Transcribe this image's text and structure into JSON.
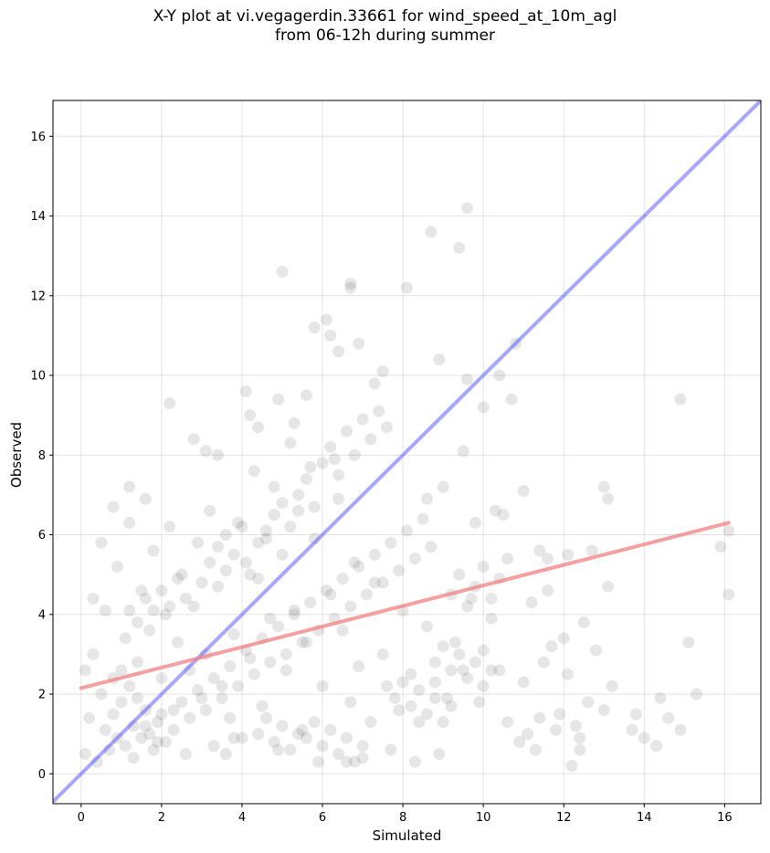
{
  "chart_data": {
    "type": "scatter",
    "title_line1": "X-Y plot at vi.vegagerdin.33661 for wind_speed_at_10m_agl",
    "title_line2": "from 06-12h during summer",
    "xlabel": "Simulated",
    "ylabel": "Observed",
    "xlim": [
      -0.7,
      16.9
    ],
    "ylim": [
      -0.75,
      16.9
    ],
    "xticks": [
      0,
      2,
      4,
      6,
      8,
      10,
      12,
      14,
      16
    ],
    "yticks": [
      0,
      2,
      4,
      6,
      8,
      10,
      12,
      14,
      16
    ],
    "grid": true,
    "point_color": "#404040",
    "identity_line": {
      "color": "#3b3bff",
      "from": [
        -0.7,
        -0.7
      ],
      "to": [
        16.9,
        16.9
      ]
    },
    "fit_line": {
      "color": "#f08080",
      "from": [
        0.0,
        2.15
      ],
      "to": [
        16.1,
        6.3
      ]
    },
    "points": [
      [
        0.1,
        2.6
      ],
      [
        0.3,
        4.4
      ],
      [
        0.5,
        5.8
      ],
      [
        0.8,
        6.7
      ],
      [
        1.2,
        7.2
      ],
      [
        1.6,
        6.9
      ],
      [
        2.2,
        9.3
      ],
      [
        2.8,
        8.4
      ],
      [
        3.1,
        8.1
      ],
      [
        3.4,
        8.0
      ],
      [
        4.1,
        9.6
      ],
      [
        4.2,
        9.0
      ],
      [
        4.4,
        8.7
      ],
      [
        4.9,
        9.4
      ],
      [
        5.0,
        12.6
      ],
      [
        5.3,
        8.8
      ],
      [
        5.6,
        9.5
      ],
      [
        5.8,
        11.2
      ],
      [
        6.1,
        11.4
      ],
      [
        6.2,
        11.0
      ],
      [
        6.4,
        10.6
      ],
      [
        6.7,
        12.3
      ],
      [
        6.7,
        12.2
      ],
      [
        6.9,
        10.8
      ],
      [
        7.3,
        9.8
      ],
      [
        7.5,
        10.1
      ],
      [
        8.1,
        12.2
      ],
      [
        8.7,
        13.6
      ],
      [
        8.9,
        10.4
      ],
      [
        9.4,
        13.2
      ],
      [
        9.6,
        14.2
      ],
      [
        9.6,
        9.9
      ],
      [
        10.0,
        9.2
      ],
      [
        10.4,
        10.0
      ],
      [
        10.8,
        10.8
      ],
      [
        10.7,
        9.4
      ],
      [
        11.0,
        7.1
      ],
      [
        10.5,
        6.5
      ],
      [
        10.3,
        6.6
      ],
      [
        9.8,
        6.3
      ],
      [
        9.5,
        8.1
      ],
      [
        9.0,
        7.2
      ],
      [
        8.6,
        6.9
      ],
      [
        13.0,
        7.2
      ],
      [
        13.1,
        6.9
      ],
      [
        14.9,
        9.4
      ],
      [
        16.1,
        6.1
      ],
      [
        15.9,
        5.7
      ],
      [
        16.1,
        4.5
      ],
      [
        15.1,
        3.3
      ],
      [
        15.3,
        2.0
      ],
      [
        14.9,
        1.1
      ],
      [
        14.6,
        1.4
      ],
      [
        14.4,
        1.9
      ],
      [
        14.3,
        0.7
      ],
      [
        14.0,
        0.9
      ],
      [
        13.8,
        1.5
      ],
      [
        13.7,
        1.1
      ],
      [
        13.2,
        2.2
      ],
      [
        13.0,
        1.6
      ],
      [
        12.8,
        3.1
      ],
      [
        12.6,
        1.8
      ],
      [
        12.5,
        3.8
      ],
      [
        12.4,
        0.9
      ],
      [
        12.2,
        0.2
      ],
      [
        12.1,
        2.5
      ],
      [
        12.0,
        3.4
      ],
      [
        11.9,
        1.5
      ],
      [
        11.8,
        1.1
      ],
      [
        11.7,
        3.2
      ],
      [
        11.5,
        2.8
      ],
      [
        11.4,
        1.4
      ],
      [
        11.3,
        0.6
      ],
      [
        11.2,
        4.3
      ],
      [
        11.1,
        1.0
      ],
      [
        11.0,
        2.3
      ],
      [
        12.7,
        5.6
      ],
      [
        12.1,
        5.5
      ],
      [
        11.6,
        5.4
      ],
      [
        11.4,
        5.6
      ],
      [
        11.6,
        4.6
      ],
      [
        13.1,
        4.7
      ],
      [
        12.3,
        1.2
      ],
      [
        12.4,
        0.6
      ],
      [
        10.9,
        0.8
      ],
      [
        10.6,
        1.3
      ],
      [
        10.4,
        2.6
      ],
      [
        10.2,
        3.9
      ],
      [
        10.0,
        3.1
      ],
      [
        9.9,
        1.8
      ],
      [
        9.7,
        4.4
      ],
      [
        9.5,
        2.6
      ],
      [
        9.3,
        3.3
      ],
      [
        9.1,
        1.9
      ],
      [
        8.9,
        0.5
      ],
      [
        8.8,
        2.3
      ],
      [
        8.6,
        3.7
      ],
      [
        8.4,
        1.3
      ],
      [
        8.3,
        0.3
      ],
      [
        8.2,
        2.5
      ],
      [
        8.0,
        4.1
      ],
      [
        7.9,
        1.6
      ],
      [
        7.7,
        0.6
      ],
      [
        7.6,
        2.2
      ],
      [
        7.5,
        3.0
      ],
      [
        7.3,
        4.8
      ],
      [
        7.2,
        1.3
      ],
      [
        7.0,
        0.4
      ],
      [
        6.9,
        2.7
      ],
      [
        6.8,
        5.3
      ],
      [
        6.7,
        1.8
      ],
      [
        6.6,
        0.3
      ],
      [
        6.5,
        3.6
      ],
      [
        6.4,
        6.9
      ],
      [
        6.3,
        7.9
      ],
      [
        6.2,
        4.5
      ],
      [
        6.0,
        2.2
      ],
      [
        5.9,
        0.3
      ],
      [
        5.8,
        5.9
      ],
      [
        5.7,
        7.7
      ],
      [
        5.6,
        3.3
      ],
      [
        5.5,
        1.1
      ],
      [
        5.4,
        6.6
      ],
      [
        5.3,
        4.1
      ],
      [
        5.2,
        8.3
      ],
      [
        5.1,
        2.6
      ],
      [
        5.0,
        5.5
      ],
      [
        4.9,
        0.6
      ],
      [
        4.8,
        7.2
      ],
      [
        4.7,
        3.9
      ],
      [
        4.6,
        6.1
      ],
      [
        4.5,
        1.7
      ],
      [
        4.4,
        4.9
      ],
      [
        4.3,
        7.6
      ],
      [
        4.2,
        2.9
      ],
      [
        4.1,
        5.3
      ],
      [
        4.0,
        0.9
      ],
      [
        3.9,
        6.3
      ],
      [
        3.8,
        3.5
      ],
      [
        3.7,
        1.4
      ],
      [
        3.6,
        5.1
      ],
      [
        3.5,
        2.2
      ],
      [
        3.4,
        4.7
      ],
      [
        3.3,
        0.7
      ],
      [
        3.2,
        6.6
      ],
      [
        3.1,
        3.0
      ],
      [
        3.0,
        1.9
      ],
      [
        2.9,
        5.8
      ],
      [
        2.8,
        4.2
      ],
      [
        2.7,
        2.6
      ],
      [
        2.6,
        0.5
      ],
      [
        2.5,
        5.0
      ],
      [
        2.4,
        3.3
      ],
      [
        2.3,
        1.6
      ],
      [
        2.2,
        6.2
      ],
      [
        2.1,
        4.0
      ],
      [
        2.0,
        2.4
      ],
      [
        1.9,
        0.8
      ],
      [
        1.8,
        5.6
      ],
      [
        1.7,
        3.6
      ],
      [
        1.6,
        1.2
      ],
      [
        1.5,
        4.6
      ],
      [
        1.4,
        2.8
      ],
      [
        1.3,
        0.4
      ],
      [
        1.2,
        6.3
      ],
      [
        1.1,
        3.4
      ],
      [
        1.0,
        1.8
      ],
      [
        0.9,
        5.2
      ],
      [
        0.8,
        2.4
      ],
      [
        0.7,
        0.6
      ],
      [
        0.6,
        4.1
      ],
      [
        0.5,
        2.0
      ],
      [
        0.4,
        0.3
      ],
      [
        0.3,
        3.0
      ],
      [
        0.2,
        1.4
      ],
      [
        0.1,
        0.5
      ],
      [
        0.9,
        0.9
      ],
      [
        1.1,
        0.7
      ],
      [
        1.3,
        1.2
      ],
      [
        1.5,
        0.9
      ],
      [
        1.7,
        1.0
      ],
      [
        1.9,
        1.3
      ],
      [
        2.1,
        0.8
      ],
      [
        2.3,
        1.1
      ],
      [
        1.8,
        0.6
      ],
      [
        2.0,
        1.5
      ],
      [
        1.6,
        1.6
      ],
      [
        1.4,
        1.9
      ],
      [
        1.2,
        2.2
      ],
      [
        1.0,
        2.6
      ],
      [
        0.8,
        1.5
      ],
      [
        0.6,
        1.1
      ],
      [
        2.5,
        1.8
      ],
      [
        2.7,
        1.4
      ],
      [
        2.9,
        2.1
      ],
      [
        3.1,
        1.6
      ],
      [
        3.3,
        2.4
      ],
      [
        3.5,
        1.9
      ],
      [
        3.7,
        2.7
      ],
      [
        3.9,
        2.2
      ],
      [
        4.1,
        3.1
      ],
      [
        4.3,
        2.5
      ],
      [
        4.5,
        3.4
      ],
      [
        4.7,
        2.8
      ],
      [
        4.9,
        3.7
      ],
      [
        5.1,
        3.0
      ],
      [
        5.3,
        4.0
      ],
      [
        5.5,
        3.3
      ],
      [
        5.7,
        4.3
      ],
      [
        5.9,
        3.6
      ],
      [
        6.1,
        4.6
      ],
      [
        6.3,
        3.9
      ],
      [
        6.5,
        4.9
      ],
      [
        6.7,
        4.2
      ],
      [
        6.9,
        5.2
      ],
      [
        7.1,
        4.5
      ],
      [
        7.3,
        5.5
      ],
      [
        7.5,
        4.8
      ],
      [
        7.7,
        5.8
      ],
      [
        7.9,
        5.1
      ],
      [
        8.1,
        6.1
      ],
      [
        8.3,
        5.4
      ],
      [
        8.5,
        6.4
      ],
      [
        8.7,
        5.7
      ],
      [
        4.6,
        5.9
      ],
      [
        4.8,
        6.5
      ],
      [
        5.0,
        6.8
      ],
      [
        5.2,
        6.2
      ],
      [
        5.4,
        7.0
      ],
      [
        5.6,
        7.4
      ],
      [
        5.8,
        6.7
      ],
      [
        6.0,
        7.8
      ],
      [
        6.2,
        8.2
      ],
      [
        6.4,
        7.5
      ],
      [
        6.6,
        8.6
      ],
      [
        6.8,
        8.0
      ],
      [
        7.0,
        8.9
      ],
      [
        7.2,
        8.4
      ],
      [
        7.4,
        9.1
      ],
      [
        7.6,
        8.7
      ],
      [
        3.2,
        5.3
      ],
      [
        3.4,
        5.7
      ],
      [
        3.6,
        6.0
      ],
      [
        3.8,
        5.5
      ],
      [
        4.0,
        6.2
      ],
      [
        4.2,
        5.0
      ],
      [
        4.4,
        5.8
      ],
      [
        3.0,
        4.8
      ],
      [
        2.6,
        4.4
      ],
      [
        2.4,
        4.9
      ],
      [
        2.2,
        4.2
      ],
      [
        2.0,
        4.6
      ],
      [
        1.8,
        4.1
      ],
      [
        1.6,
        4.4
      ],
      [
        1.4,
        3.8
      ],
      [
        1.2,
        4.1
      ],
      [
        9.2,
        4.5
      ],
      [
        9.4,
        5.0
      ],
      [
        9.6,
        4.2
      ],
      [
        9.8,
        4.7
      ],
      [
        10.0,
        5.2
      ],
      [
        10.2,
        4.4
      ],
      [
        10.4,
        4.9
      ],
      [
        10.6,
        5.4
      ],
      [
        8.8,
        2.8
      ],
      [
        9.0,
        3.2
      ],
      [
        9.2,
        2.6
      ],
      [
        9.4,
        3.0
      ],
      [
        9.6,
        2.4
      ],
      [
        9.8,
        2.8
      ],
      [
        10.0,
        2.2
      ],
      [
        10.2,
        2.6
      ],
      [
        7.8,
        1.9
      ],
      [
        8.0,
        2.3
      ],
      [
        8.2,
        1.7
      ],
      [
        8.4,
        2.1
      ],
      [
        8.6,
        1.5
      ],
      [
        8.8,
        1.9
      ],
      [
        9.0,
        1.3
      ],
      [
        9.2,
        1.7
      ],
      [
        5.6,
        0.9
      ],
      [
        5.8,
        1.3
      ],
      [
        6.0,
        0.7
      ],
      [
        6.2,
        1.1
      ],
      [
        6.4,
        0.5
      ],
      [
        6.6,
        0.9
      ],
      [
        6.8,
        0.3
      ],
      [
        7.0,
        0.7
      ],
      [
        4.4,
        1.0
      ],
      [
        4.6,
        1.4
      ],
      [
        4.8,
        0.8
      ],
      [
        5.0,
        1.2
      ],
      [
        5.2,
        0.6
      ],
      [
        5.4,
        1.0
      ],
      [
        3.6,
        0.5
      ],
      [
        3.8,
        0.9
      ]
    ]
  }
}
